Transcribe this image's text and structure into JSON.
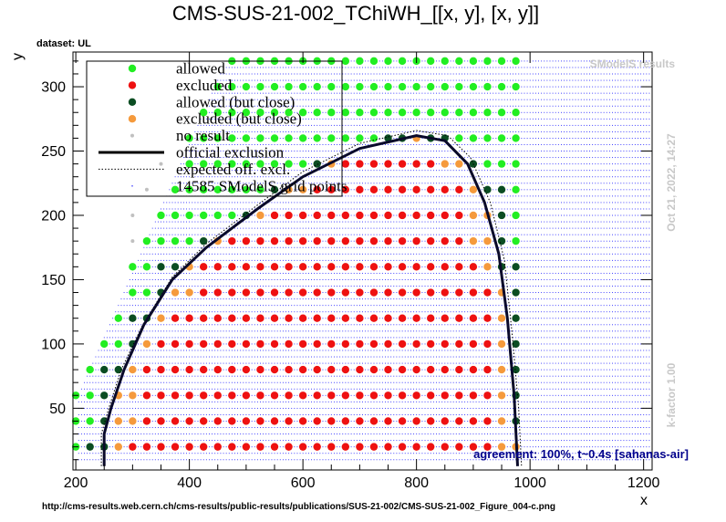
{
  "chart_data": {
    "type": "scatter",
    "title": "CMS-SUS-21-002_TChiWH_[[x, y], [x, y]]",
    "xlabel": "x",
    "ylabel": "y",
    "xlim": [
      195,
      1215
    ],
    "ylim": [
      2,
      327
    ],
    "xticks": [
      200,
      400,
      600,
      800,
      1000,
      1200
    ],
    "yticks": [
      50,
      100,
      150,
      200,
      250,
      300
    ],
    "dataset_label": "dataset: UL",
    "timestamp": "Oct 21, 2022, 14:27",
    "kfactor": "k-factor 1.00",
    "watermark": "SModelS results",
    "agreement": "agreement: 100%, t~0.4s [sahanas-air]",
    "url": "http://cms-results.web.cern.ch/cms-results/public-results/publications/SUS-21-002/CMS-SUS-21-002_Figure_004-c.png",
    "legend": [
      {
        "label": "allowed",
        "kind": "dot",
        "color": "#22ee22"
      },
      {
        "label": "excluded",
        "kind": "dot",
        "color": "#ee1111"
      },
      {
        "label": "allowed (but close)",
        "kind": "dot",
        "color": "#0b4d22"
      },
      {
        "label": "excluded (but close)",
        "kind": "dot",
        "color": "#f59a3c"
      },
      {
        "label": "no result",
        "kind": "smalldot",
        "color": "#c0c0c0"
      },
      {
        "label": "official exclusion",
        "kind": "line",
        "color": "#000000"
      },
      {
        "label": "expected off. excl.",
        "kind": "dotted",
        "color": "#000000"
      },
      {
        "label": "14585 SModelS grid points",
        "kind": "tiny",
        "color": "#0000ff"
      }
    ],
    "colors": {
      "allowed": "#22ee22",
      "excluded": "#ee1111",
      "allowed_close": "#0b4d22",
      "excluded_close": "#f59a3c",
      "no_result": "#c0c0c0",
      "grid_points": "#1a1aff",
      "official_line": "#0a0a2a"
    },
    "official_exclusion": [
      [
        250,
        5
      ],
      [
        250,
        30
      ],
      [
        262,
        50
      ],
      [
        285,
        80
      ],
      [
        320,
        115
      ],
      [
        370,
        150
      ],
      [
        430,
        175
      ],
      [
        520,
        205
      ],
      [
        600,
        230
      ],
      [
        700,
        252
      ],
      [
        800,
        262
      ],
      [
        850,
        258
      ],
      [
        890,
        240
      ],
      [
        920,
        210
      ],
      [
        945,
        170
      ],
      [
        960,
        120
      ],
      [
        972,
        60
      ],
      [
        978,
        5
      ]
    ],
    "expected_exclusion": [
      [
        245,
        5
      ],
      [
        245,
        30
      ],
      [
        258,
        50
      ],
      [
        280,
        80
      ],
      [
        318,
        115
      ],
      [
        370,
        152
      ],
      [
        430,
        178
      ],
      [
        520,
        208
      ],
      [
        600,
        234
      ],
      [
        700,
        256
      ],
      [
        800,
        266
      ],
      [
        855,
        262
      ],
      [
        895,
        245
      ],
      [
        930,
        210
      ],
      [
        955,
        165
      ],
      [
        968,
        110
      ],
      [
        980,
        50
      ],
      [
        985,
        5
      ]
    ]
  }
}
